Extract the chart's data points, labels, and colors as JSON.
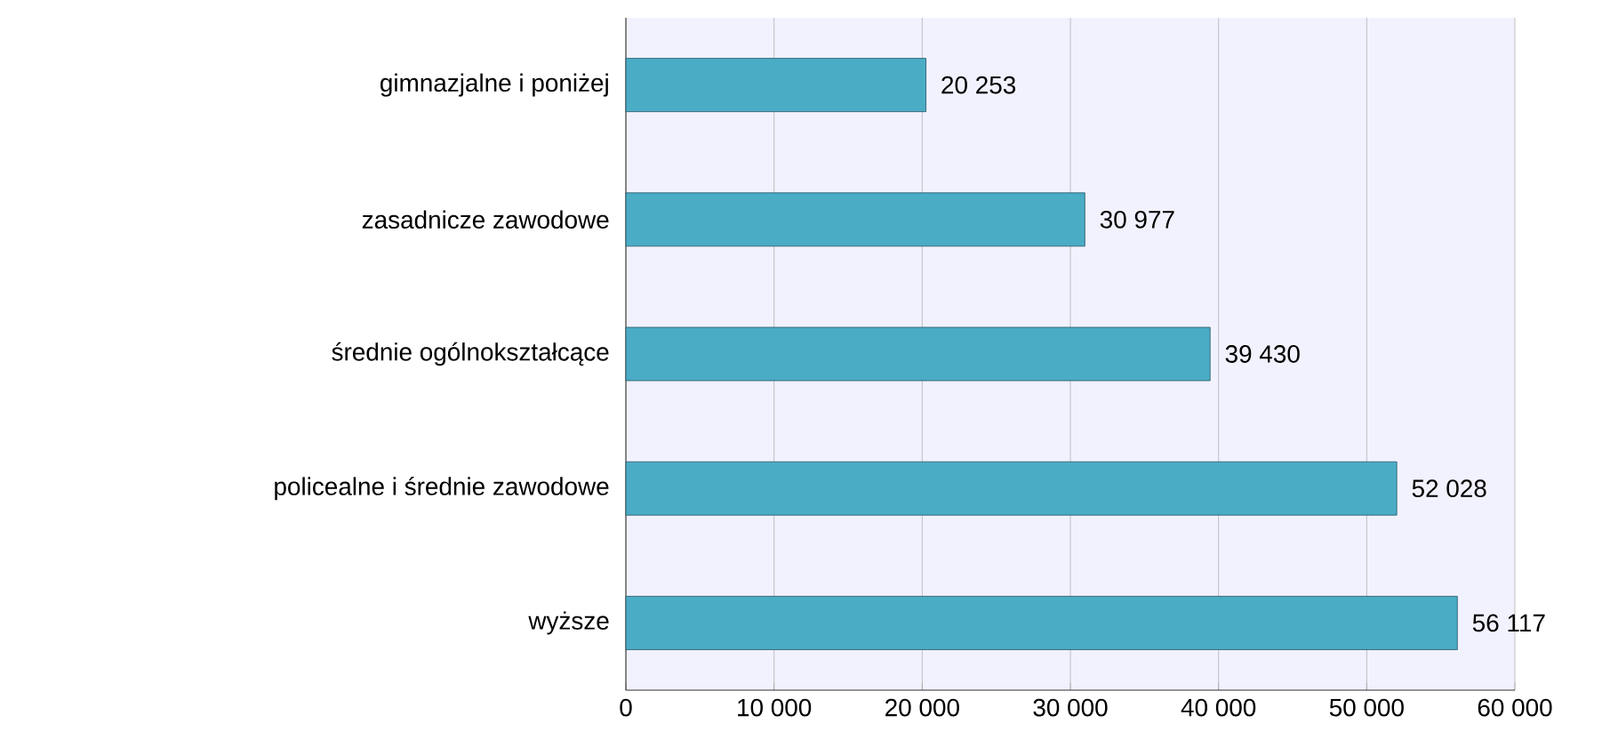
{
  "chart_data": {
    "type": "bar",
    "orientation": "horizontal",
    "categories": [
      "gimnazjalne i poniżej",
      "zasadnicze zawodowe",
      "średnie ogólnokształcące",
      "policealne i średnie zawodowe",
      "wyższe"
    ],
    "values": [
      20253,
      30977,
      39430,
      52028,
      56117
    ],
    "value_labels": [
      "20 253",
      "30 977",
      "39 430",
      "52 028",
      "56 117"
    ],
    "color": "#4bacc6",
    "xlim": [
      0,
      60000
    ],
    "xticks": [
      0,
      {
        "value": 10000,
        "label": "10 000"
      },
      {
        "value": 20000,
        "label": "20 000"
      },
      {
        "value": 30000,
        "label": "30 000"
      },
      {
        "value": 40000,
        "label": "40 000"
      },
      {
        "value": 50000,
        "label": "50 000"
      },
      {
        "value": 60000,
        "label": "60 000"
      }
    ],
    "grid": "x"
  }
}
